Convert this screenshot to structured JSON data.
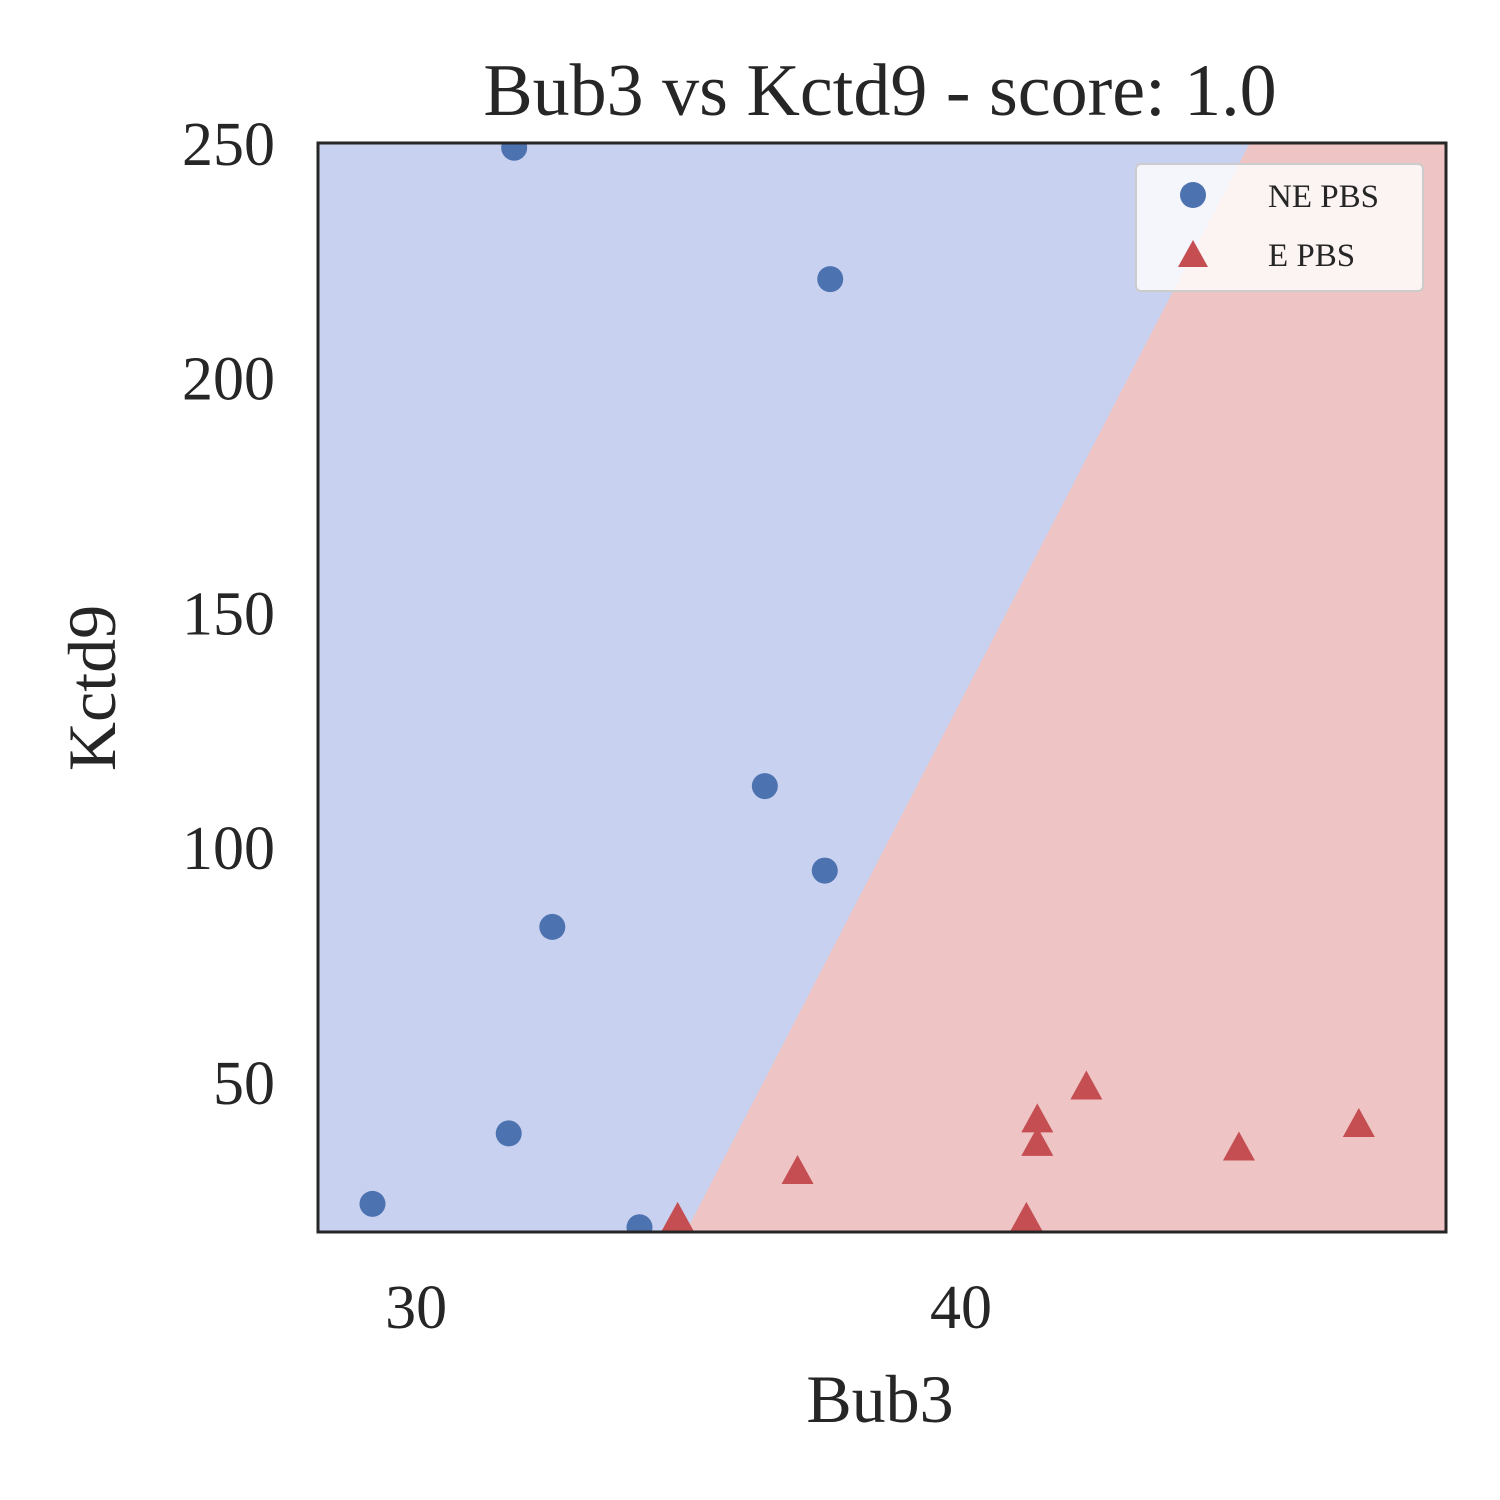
{
  "chart_data": {
    "type": "scatter",
    "title": "Bub3 vs Kctd9 - score: 1.0",
    "xlabel": "Bub3",
    "ylabel": "Kctd9",
    "xlim": [
      28.2,
      48.9
    ],
    "ylim": [
      18,
      250
    ],
    "xticks": [
      30,
      40
    ],
    "yticks": [
      50,
      100,
      150,
      200,
      250
    ],
    "grid": false,
    "legend_position": "top-right",
    "decision_boundary": [
      [
        34.95,
        18
      ],
      [
        45.3,
        250
      ]
    ],
    "regions": {
      "left_color": "#c8d1f0",
      "right_color": "#eec4c4"
    },
    "series": [
      {
        "name": "NE PBS",
        "marker": "circle",
        "color": "#4c72b0",
        "points": [
          [
            29.2,
            24
          ],
          [
            31.7,
            39
          ],
          [
            31.8,
            249
          ],
          [
            32.5,
            83
          ],
          [
            34.1,
            19
          ],
          [
            36.4,
            113
          ],
          [
            37.5,
            95
          ],
          [
            37.6,
            221
          ]
        ]
      },
      {
        "name": "E PBS",
        "marker": "triangle",
        "color": "#c44e52",
        "points": [
          [
            34.8,
            21
          ],
          [
            37.0,
            31
          ],
          [
            41.2,
            21
          ],
          [
            41.4,
            37
          ],
          [
            41.4,
            42
          ],
          [
            42.3,
            49
          ],
          [
            45.1,
            36
          ],
          [
            47.3,
            41
          ]
        ]
      }
    ]
  }
}
